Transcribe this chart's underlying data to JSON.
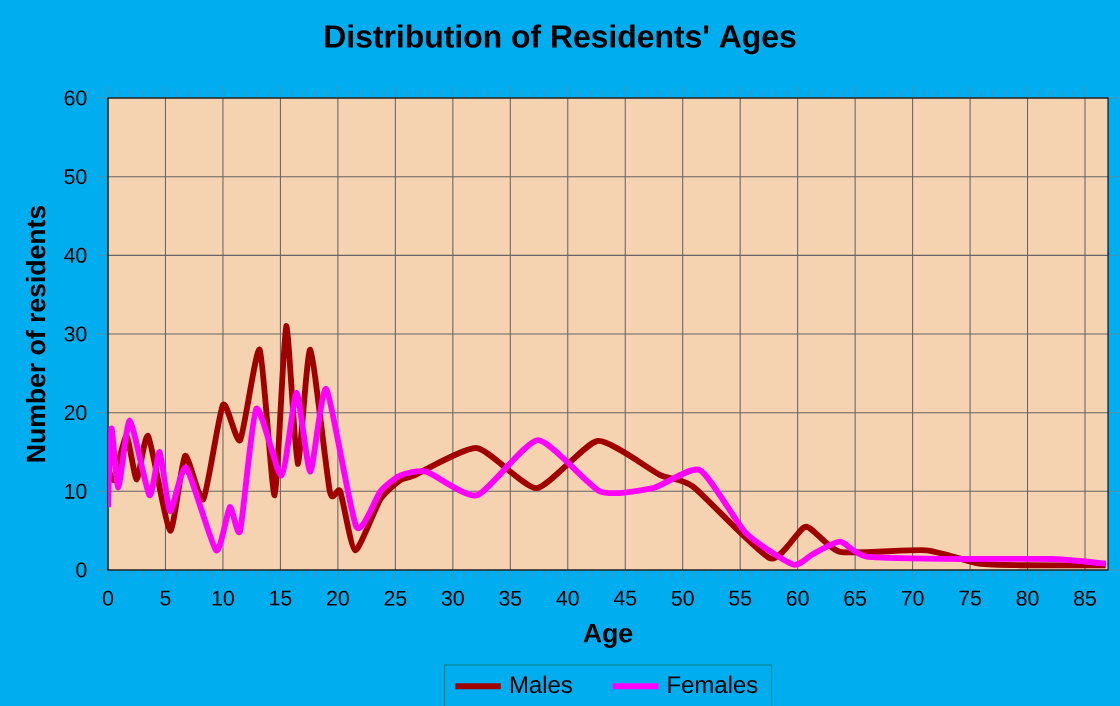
{
  "chart_data": {
    "type": "line",
    "title": "Distribution of Residents' Ages",
    "xlabel": "Age",
    "ylabel": "Number of residents",
    "xlim": [
      0,
      87
    ],
    "xticks": [
      0,
      5,
      10,
      15,
      20,
      25,
      30,
      35,
      40,
      45,
      50,
      55,
      60,
      65,
      70,
      75,
      80,
      85
    ],
    "ylim": [
      0,
      60
    ],
    "yticks": [
      0,
      10,
      20,
      30,
      40,
      50,
      60
    ],
    "grid": true,
    "legend": "bottom",
    "line_style": "solid",
    "marker": "none",
    "series": [
      {
        "name": "Males",
        "color": "#a00000",
        "x": [
          0,
          0.5,
          1.6,
          2.5,
          3.5,
          5.4,
          6.7,
          8.3,
          10,
          11.5,
          13.2,
          14.5,
          15.5,
          16.5,
          17.6,
          19.3,
          20.2,
          21.5,
          23.7,
          25.4,
          26.6,
          32.1,
          37.3,
          42.6,
          48,
          50.9,
          57.6,
          60.7,
          63.7,
          71.2,
          75.8,
          80,
          86.8
        ],
        "values": [
          13,
          11.5,
          17,
          11.5,
          17,
          5,
          14.5,
          9,
          21,
          16.5,
          28,
          9.5,
          31,
          13.5,
          28,
          10,
          10,
          2.5,
          9,
          11.4,
          12,
          15.5,
          10.4,
          16.4,
          12.1,
          10.6,
          1.5,
          5.5,
          2.3,
          2.5,
          0.8,
          0.6,
          0.6
        ]
      },
      {
        "name": "Females",
        "color": "#ff00ff",
        "x": [
          0,
          0.3,
          0.9,
          1.9,
          3.6,
          4.5,
          5.4,
          6.8,
          9.4,
          10.6,
          11.5,
          12.9,
          15.1,
          16.4,
          17.6,
          19,
          21.6,
          23.7,
          25.4,
          27.7,
          32.1,
          37.4,
          42.8,
          47.4,
          51.5,
          55.5,
          59.6,
          61.3,
          63.7,
          66,
          74.1,
          82.2,
          86.8
        ],
        "values": [
          8,
          18,
          10.5,
          19,
          9.5,
          15,
          7.5,
          13,
          2.5,
          8,
          5,
          20.5,
          12,
          22.5,
          12.5,
          23,
          5.5,
          10,
          12,
          12.5,
          9.5,
          16.5,
          10,
          10.4,
          12.7,
          4.7,
          0.7,
          2,
          3.6,
          1.7,
          1.4,
          1.4,
          0.8
        ]
      }
    ]
  }
}
